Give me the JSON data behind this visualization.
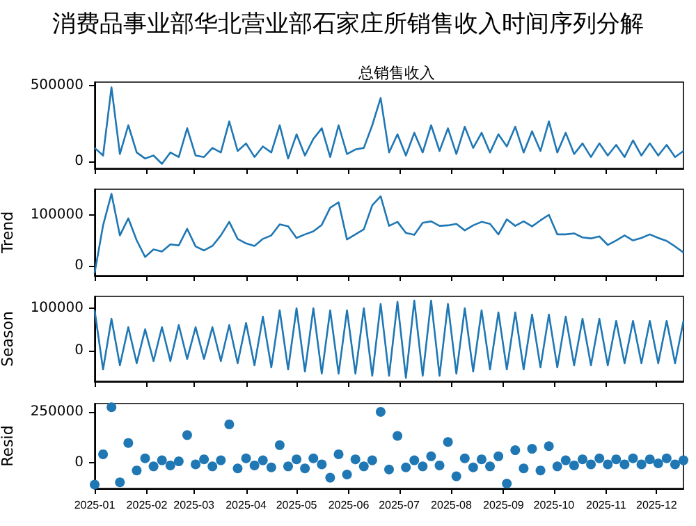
{
  "chart_data": [
    {
      "type": "line",
      "title": "消费品事业部华北营业部石家庄所销售收入时间序列分解",
      "subtitle": "总销售收入",
      "color": "#1f77b4",
      "x": [
        "2025-01-01",
        "2025-01-06",
        "2025-01-11",
        "2025-01-16",
        "2025-01-21",
        "2025-01-26",
        "2025-01-31",
        "2025-02-05",
        "2025-02-10",
        "2025-02-15",
        "2025-02-20",
        "2025-02-25",
        "2025-03-02",
        "2025-03-07",
        "2025-03-12",
        "2025-03-17",
        "2025-03-22",
        "2025-03-27",
        "2025-04-01",
        "2025-04-06",
        "2025-04-11",
        "2025-04-16",
        "2025-04-21",
        "2025-04-26",
        "2025-05-01",
        "2025-05-06",
        "2025-05-11",
        "2025-05-16",
        "2025-05-21",
        "2025-05-26",
        "2025-05-31",
        "2025-06-05",
        "2025-06-10",
        "2025-06-15",
        "2025-06-20",
        "2025-06-25",
        "2025-06-30",
        "2025-07-05",
        "2025-07-10",
        "2025-07-15",
        "2025-07-20",
        "2025-07-25",
        "2025-07-30",
        "2025-08-04",
        "2025-08-09",
        "2025-08-14",
        "2025-08-19",
        "2025-08-24",
        "2025-08-29",
        "2025-09-03",
        "2025-09-08",
        "2025-09-13",
        "2025-09-18",
        "2025-09-23",
        "2025-09-28",
        "2025-10-03",
        "2025-10-08",
        "2025-10-13",
        "2025-10-18",
        "2025-10-23",
        "2025-10-28",
        "2025-11-02",
        "2025-11-07",
        "2025-11-12",
        "2025-11-17",
        "2025-11-22",
        "2025-11-27",
        "2025-12-02",
        "2025-12-07",
        "2025-12-12",
        "2025-12-17"
      ],
      "values": [
        90000,
        40000,
        490000,
        50000,
        240000,
        60000,
        20000,
        40000,
        -15000,
        60000,
        30000,
        220000,
        40000,
        30000,
        90000,
        60000,
        265000,
        70000,
        120000,
        30000,
        100000,
        60000,
        240000,
        20000,
        180000,
        40000,
        150000,
        220000,
        30000,
        240000,
        50000,
        80000,
        90000,
        240000,
        420000,
        60000,
        180000,
        40000,
        190000,
        60000,
        240000,
        70000,
        220000,
        50000,
        230000,
        90000,
        190000,
        60000,
        180000,
        100000,
        230000,
        60000,
        200000,
        70000,
        265000,
        60000,
        190000,
        50000,
        120000,
        30000,
        120000,
        40000,
        110000,
        30000,
        140000,
        40000,
        120000,
        40000,
        110000,
        30000,
        70000
      ],
      "xlim": [
        "2025-01-01",
        "2025-12-17"
      ],
      "xticks": [
        "2025-01",
        "2025-02",
        "2025-03",
        "2025-04",
        "2025-05",
        "2025-06",
        "2025-07",
        "2025-08",
        "2025-09",
        "2025-10",
        "2025-11",
        "2025-12"
      ],
      "ylim": [
        -45000,
        525000
      ],
      "yticks": [
        0,
        500000
      ],
      "tick_labels": "y"
    },
    {
      "type": "line",
      "ylabel": "Trend",
      "color": "#1f77b4",
      "x": [
        "2025-01-01",
        "2025-01-06",
        "2025-01-11",
        "2025-01-16",
        "2025-01-21",
        "2025-01-26",
        "2025-01-31",
        "2025-02-05",
        "2025-02-10",
        "2025-02-15",
        "2025-02-20",
        "2025-02-25",
        "2025-03-02",
        "2025-03-07",
        "2025-03-12",
        "2025-03-17",
        "2025-03-22",
        "2025-03-27",
        "2025-04-01",
        "2025-04-06",
        "2025-04-11",
        "2025-04-16",
        "2025-04-21",
        "2025-04-26",
        "2025-05-01",
        "2025-05-06",
        "2025-05-11",
        "2025-05-16",
        "2025-05-21",
        "2025-05-26",
        "2025-05-31",
        "2025-06-05",
        "2025-06-10",
        "2025-06-15",
        "2025-06-20",
        "2025-06-25",
        "2025-06-30",
        "2025-07-05",
        "2025-07-10",
        "2025-07-15",
        "2025-07-20",
        "2025-07-25",
        "2025-07-30",
        "2025-08-04",
        "2025-08-09",
        "2025-08-14",
        "2025-08-19",
        "2025-08-24",
        "2025-08-29",
        "2025-09-03",
        "2025-09-08",
        "2025-09-13",
        "2025-09-18",
        "2025-09-23",
        "2025-09-28",
        "2025-10-03",
        "2025-10-08",
        "2025-10-13",
        "2025-10-18",
        "2025-10-23",
        "2025-10-28",
        "2025-11-02",
        "2025-11-07",
        "2025-11-12",
        "2025-11-17",
        "2025-11-22",
        "2025-11-27",
        "2025-12-02",
        "2025-12-07",
        "2025-12-12",
        "2025-12-17"
      ],
      "values": [
        -15000,
        80000,
        143000,
        60000,
        94000,
        50000,
        17000,
        32000,
        28000,
        42000,
        40000,
        73000,
        38000,
        30000,
        39000,
        60000,
        87000,
        53000,
        44000,
        39000,
        53000,
        60000,
        82000,
        78000,
        55000,
        62000,
        68000,
        81000,
        115000,
        126000,
        52000,
        62000,
        72000,
        120000,
        138000,
        79000,
        87000,
        65000,
        61000,
        85000,
        88000,
        79000,
        80000,
        83000,
        70000,
        80000,
        87000,
        83000,
        62000,
        92000,
        79000,
        88000,
        78000,
        90000,
        101000,
        62000,
        62000,
        64000,
        56000,
        54000,
        58000,
        41000,
        50000,
        60000,
        50000,
        55000,
        62000,
        55000,
        49000,
        38000,
        26000
      ],
      "xlim": [
        "2025-01-01",
        "2025-12-17"
      ],
      "xticks": [
        "2025-01",
        "2025-02",
        "2025-03",
        "2025-04",
        "2025-05",
        "2025-06",
        "2025-07",
        "2025-08",
        "2025-09",
        "2025-10",
        "2025-11",
        "2025-12"
      ],
      "ylim": [
        -20000,
        152000
      ],
      "yticks": [
        0,
        100000
      ],
      "tick_labels": "y"
    },
    {
      "type": "line",
      "ylabel": "Season",
      "color": "#1f77b4",
      "x": [
        "2025-01-01",
        "2025-01-06",
        "2025-01-11",
        "2025-01-16",
        "2025-01-21",
        "2025-01-26",
        "2025-01-31",
        "2025-02-05",
        "2025-02-10",
        "2025-02-15",
        "2025-02-20",
        "2025-02-25",
        "2025-03-02",
        "2025-03-07",
        "2025-03-12",
        "2025-03-17",
        "2025-03-22",
        "2025-03-27",
        "2025-04-01",
        "2025-04-06",
        "2025-04-11",
        "2025-04-16",
        "2025-04-21",
        "2025-04-26",
        "2025-05-01",
        "2025-05-06",
        "2025-05-11",
        "2025-05-16",
        "2025-05-21",
        "2025-05-26",
        "2025-05-31",
        "2025-06-05",
        "2025-06-10",
        "2025-06-15",
        "2025-06-20",
        "2025-06-25",
        "2025-06-30",
        "2025-07-05",
        "2025-07-10",
        "2025-07-15",
        "2025-07-20",
        "2025-07-25",
        "2025-07-30",
        "2025-08-04",
        "2025-08-09",
        "2025-08-14",
        "2025-08-19",
        "2025-08-24",
        "2025-08-29",
        "2025-09-03",
        "2025-09-08",
        "2025-09-13",
        "2025-09-18",
        "2025-09-23",
        "2025-09-28",
        "2025-10-03",
        "2025-10-08",
        "2025-10-13",
        "2025-10-18",
        "2025-10-23",
        "2025-10-28",
        "2025-11-02",
        "2025-11-07",
        "2025-11-12",
        "2025-11-17",
        "2025-11-22",
        "2025-11-27",
        "2025-12-02",
        "2025-12-07",
        "2025-12-12",
        "2025-12-17"
      ],
      "values": [
        95000,
        -45000,
        75000,
        -35000,
        55000,
        -30000,
        50000,
        -25000,
        55000,
        -25000,
        60000,
        -20000,
        55000,
        -20000,
        55000,
        -25000,
        60000,
        -30000,
        65000,
        -35000,
        80000,
        -40000,
        95000,
        -45000,
        100000,
        -50000,
        100000,
        -55000,
        95000,
        -55000,
        95000,
        -55000,
        100000,
        -60000,
        110000,
        -60000,
        115000,
        -65000,
        118000,
        -60000,
        118000,
        -60000,
        110000,
        -55000,
        100000,
        -50000,
        95000,
        -45000,
        90000,
        -45000,
        90000,
        -45000,
        85000,
        -40000,
        85000,
        -40000,
        80000,
        -35000,
        75000,
        -35000,
        75000,
        -35000,
        70000,
        -30000,
        70000,
        -30000,
        70000,
        -30000,
        70000,
        -30000,
        70000
      ],
      "xlim": [
        "2025-01-01",
        "2025-12-17"
      ],
      "xticks": [
        "2025-01",
        "2025-02",
        "2025-03",
        "2025-04",
        "2025-05",
        "2025-06",
        "2025-07",
        "2025-08",
        "2025-09",
        "2025-10",
        "2025-11",
        "2025-12"
      ],
      "ylim": [
        -73000,
        128000
      ],
      "yticks": [
        0,
        100000
      ],
      "tick_labels": "y"
    },
    {
      "type": "scatter",
      "ylabel": "Resid",
      "color": "#1f77b4",
      "marker": "circle",
      "x": [
        "2025-01-01",
        "2025-01-06",
        "2025-01-11",
        "2025-01-16",
        "2025-01-21",
        "2025-01-26",
        "2025-01-31",
        "2025-02-05",
        "2025-02-10",
        "2025-02-15",
        "2025-02-20",
        "2025-02-25",
        "2025-03-02",
        "2025-03-07",
        "2025-03-12",
        "2025-03-17",
        "2025-03-22",
        "2025-03-27",
        "2025-04-01",
        "2025-04-06",
        "2025-04-11",
        "2025-04-16",
        "2025-04-21",
        "2025-04-26",
        "2025-05-01",
        "2025-05-06",
        "2025-05-11",
        "2025-05-16",
        "2025-05-21",
        "2025-05-26",
        "2025-05-31",
        "2025-06-05",
        "2025-06-10",
        "2025-06-15",
        "2025-06-20",
        "2025-06-25",
        "2025-06-30",
        "2025-07-05",
        "2025-07-10",
        "2025-07-15",
        "2025-07-20",
        "2025-07-25",
        "2025-07-30",
        "2025-08-04",
        "2025-08-09",
        "2025-08-14",
        "2025-08-19",
        "2025-08-24",
        "2025-08-29",
        "2025-09-03",
        "2025-09-08",
        "2025-09-13",
        "2025-09-18",
        "2025-09-23",
        "2025-09-28",
        "2025-10-03",
        "2025-10-08",
        "2025-10-13",
        "2025-10-18",
        "2025-10-23",
        "2025-10-28",
        "2025-11-02",
        "2025-11-07",
        "2025-11-12",
        "2025-11-17",
        "2025-11-22",
        "2025-11-27",
        "2025-12-02",
        "2025-12-07",
        "2025-12-12",
        "2025-12-17"
      ],
      "values": [
        -110000,
        40000,
        273000,
        -99000,
        96000,
        -40000,
        20000,
        -20000,
        10000,
        -15000,
        5000,
        135000,
        -10000,
        15000,
        -20000,
        10000,
        188000,
        -30000,
        20000,
        -15000,
        10000,
        -25000,
        85000,
        -20000,
        15000,
        -30000,
        20000,
        -10000,
        -76000,
        40000,
        -60000,
        15000,
        -20000,
        10000,
        250000,
        -35000,
        131000,
        -25000,
        10000,
        -20000,
        30000,
        -15000,
        101000,
        -69000,
        20000,
        -25000,
        15000,
        -20000,
        30000,
        -105000,
        60000,
        -30000,
        67000,
        -40000,
        80000,
        -20000,
        10000,
        -15000,
        15000,
        -10000,
        20000,
        -10000,
        15000,
        -10000,
        20000,
        -10000,
        15000,
        -5000,
        20000,
        -10000,
        10000
      ],
      "xlim": [
        "2025-01-01",
        "2025-12-17"
      ],
      "xticks": [
        "2025-01",
        "2025-02",
        "2025-03",
        "2025-04",
        "2025-05",
        "2025-06",
        "2025-07",
        "2025-08",
        "2025-09",
        "2025-10",
        "2025-11",
        "2025-12"
      ],
      "ylim": [
        -129000,
        291000
      ],
      "yticks": [
        0,
        250000
      ]
    }
  ]
}
